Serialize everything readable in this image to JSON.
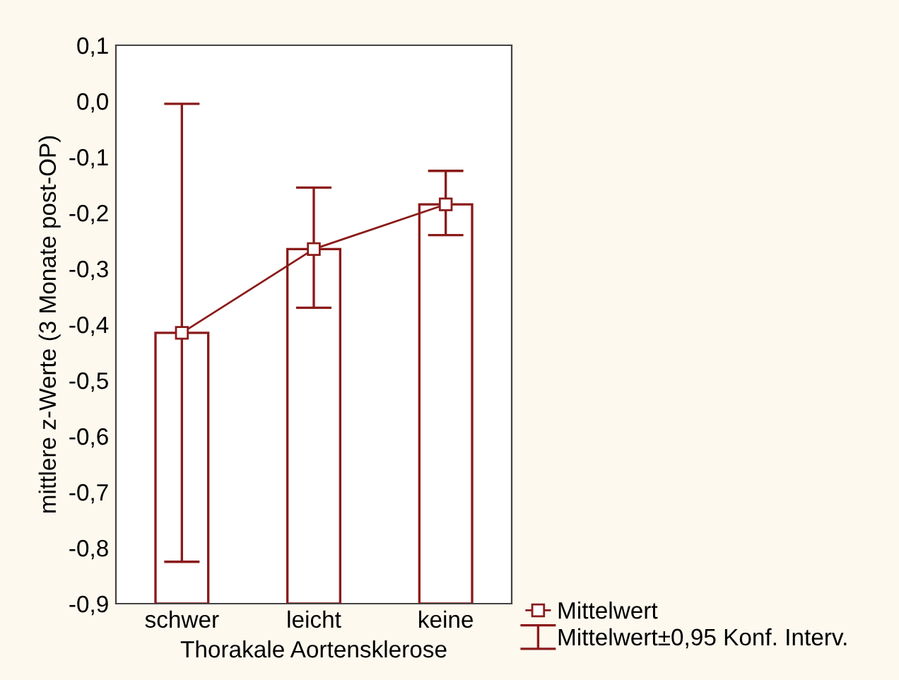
{
  "chart_data": {
    "type": "bar",
    "xlabel": "Thorakale Aortensklerose",
    "ylabel": "mittlere z-Werte (3 Monate post-OP)",
    "categories": [
      "schwer",
      "leicht",
      "keine"
    ],
    "series": [
      {
        "color": "#8b1a1a",
        "base": [
          -0.9,
          -0.9,
          -0.9
        ],
        "values": [
          0.485,
          0.635,
          0.715
        ]
      },
      {
        "type": "line",
        "name": "Mittelwert",
        "color": "#8b1a1a",
        "marker": "square",
        "values": [
          -0.415,
          -0.265,
          -0.185
        ],
        "errors": [
          [
            -0.825,
            -0.005
          ],
          [
            -0.37,
            -0.155
          ],
          [
            -0.24,
            -0.125
          ]
        ]
      }
    ],
    "annotations": [
      "Mittelwert±0,95 Konf. Interv."
    ],
    "ylim": [
      -0.9,
      0.1
    ],
    "yticks": [
      {
        "value": 0.1,
        "label": "0,1"
      },
      {
        "value": 0.0,
        "label": "0,0"
      },
      {
        "value": -0.1,
        "label": "-0,1"
      },
      {
        "value": -0.2,
        "label": "-0,2"
      },
      {
        "value": -0.3,
        "label": "-0,3"
      },
      {
        "value": -0.4,
        "label": "-0,4"
      },
      {
        "value": -0.5,
        "label": "-0,5"
      },
      {
        "value": -0.6,
        "label": "-0,6"
      },
      {
        "value": -0.7,
        "label": "-0,7"
      },
      {
        "value": -0.8,
        "label": "-0,8"
      },
      {
        "value": -0.9,
        "label": "-0,9"
      }
    ],
    "grid": false,
    "legend": "bottom right"
  }
}
